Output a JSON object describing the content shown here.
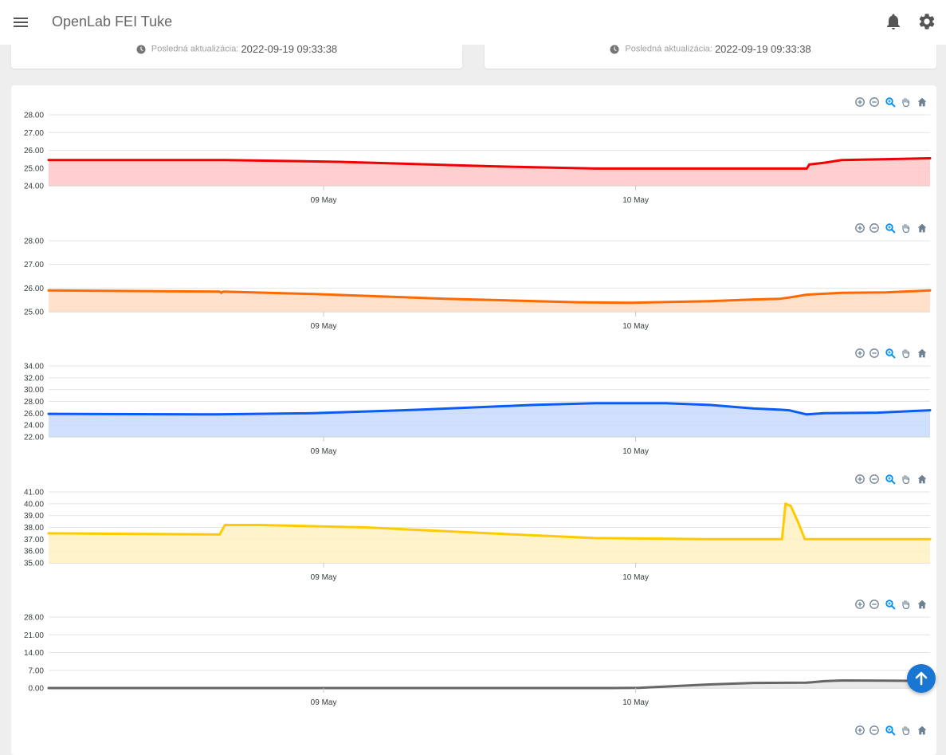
{
  "header": {
    "title": "OpenLab FEI Tuke",
    "icons": [
      "menu-icon",
      "bell-icon",
      "gear-icon"
    ]
  },
  "info_cards": [
    {
      "label": "Posledná aktualizácia:",
      "value": "2022-09-19 09:33:38"
    },
    {
      "label": "Posledná aktualizácia:",
      "value": "2022-09-19 09:33:38"
    }
  ],
  "toolbar_icons": [
    "zoom-in-icon",
    "zoom-out-icon",
    "selection-zoom-icon",
    "pan-icon",
    "reset-home-icon"
  ],
  "scroll_top_icon": "arrow-up-icon",
  "chart_data": [
    {
      "type": "area",
      "color": "#ee0000",
      "fill": "#ffc5c5",
      "ylim": [
        24,
        28
      ],
      "yticks": [
        "24.00",
        "25.00",
        "26.00",
        "27.00",
        "28.00"
      ],
      "xticks": [
        {
          "t": 0.312,
          "label": "09 May"
        },
        {
          "t": 0.666,
          "label": "10 May"
        }
      ],
      "points": [
        [
          0,
          25.45
        ],
        [
          0.2,
          25.45
        ],
        [
          0.33,
          25.35
        ],
        [
          0.5,
          25.1
        ],
        [
          0.62,
          24.97
        ],
        [
          0.86,
          24.97
        ],
        [
          0.863,
          25.2
        ],
        [
          0.88,
          25.3
        ],
        [
          0.9,
          25.45
        ],
        [
          1.0,
          25.55
        ]
      ]
    },
    {
      "type": "area",
      "color": "#ff6a00",
      "fill": "#ffdcc2",
      "ylim": [
        25,
        28
      ],
      "yticks": [
        "25.00",
        "26.00",
        "27.00",
        "28.00"
      ],
      "xticks": [
        {
          "t": 0.312,
          "label": "09 May"
        },
        {
          "t": 0.666,
          "label": "10 May"
        }
      ],
      "points": [
        [
          0,
          25.9
        ],
        [
          0.194,
          25.85
        ],
        [
          0.196,
          25.8
        ],
        [
          0.198,
          25.85
        ],
        [
          0.3,
          25.75
        ],
        [
          0.45,
          25.55
        ],
        [
          0.6,
          25.4
        ],
        [
          0.66,
          25.38
        ],
        [
          0.75,
          25.45
        ],
        [
          0.8,
          25.52
        ],
        [
          0.83,
          25.55
        ],
        [
          0.84,
          25.6
        ],
        [
          0.86,
          25.72
        ],
        [
          0.9,
          25.8
        ],
        [
          0.95,
          25.82
        ],
        [
          1.0,
          25.9
        ]
      ]
    },
    {
      "type": "area",
      "color": "#0a5cf5",
      "fill": "#c8dafc",
      "ylim": [
        22,
        34
      ],
      "yticks": [
        "22.00",
        "24.00",
        "26.00",
        "28.00",
        "30.00",
        "32.00",
        "34.00"
      ],
      "xticks": [
        {
          "t": 0.312,
          "label": "09 May"
        },
        {
          "t": 0.666,
          "label": "10 May"
        }
      ],
      "points": [
        [
          0,
          25.9
        ],
        [
          0.19,
          25.8
        ],
        [
          0.3,
          26.0
        ],
        [
          0.42,
          26.6
        ],
        [
          0.55,
          27.4
        ],
        [
          0.62,
          27.7
        ],
        [
          0.7,
          27.7
        ],
        [
          0.75,
          27.4
        ],
        [
          0.8,
          26.8
        ],
        [
          0.83,
          26.6
        ],
        [
          0.84,
          26.5
        ],
        [
          0.86,
          25.8
        ],
        [
          0.88,
          26.0
        ],
        [
          0.94,
          26.1
        ],
        [
          1.0,
          26.5
        ]
      ]
    },
    {
      "type": "area",
      "color": "#ffcb00",
      "fill": "#fff1c2",
      "ylim": [
        35,
        41
      ],
      "yticks": [
        "35.00",
        "36.00",
        "37.00",
        "38.00",
        "39.00",
        "40.00",
        "41.00"
      ],
      "xticks": [
        {
          "t": 0.312,
          "label": "09 May"
        },
        {
          "t": 0.666,
          "label": "10 May"
        }
      ],
      "points": [
        [
          0,
          37.5
        ],
        [
          0.19,
          37.4
        ],
        [
          0.194,
          37.4
        ],
        [
          0.2,
          38.2
        ],
        [
          0.24,
          38.2
        ],
        [
          0.36,
          38.0
        ],
        [
          0.5,
          37.5
        ],
        [
          0.62,
          37.1
        ],
        [
          0.75,
          37.0
        ],
        [
          0.832,
          37.0
        ],
        [
          0.836,
          40.0
        ],
        [
          0.842,
          39.8
        ],
        [
          0.85,
          38.5
        ],
        [
          0.858,
          37.0
        ],
        [
          1.0,
          37.0
        ]
      ]
    },
    {
      "type": "area",
      "color": "#666666",
      "fill": "#e6e6e6",
      "ylim": [
        0,
        28
      ],
      "yticks": [
        "0.00",
        "7.00",
        "14.00",
        "21.00",
        "28.00"
      ],
      "xticks": [
        {
          "t": 0.312,
          "label": "09 May"
        },
        {
          "t": 0.666,
          "label": "10 May"
        }
      ],
      "points": [
        [
          0,
          0.0
        ],
        [
          0.64,
          0.0
        ],
        [
          0.67,
          0.1
        ],
        [
          0.75,
          1.4
        ],
        [
          0.8,
          2.0
        ],
        [
          0.86,
          2.1
        ],
        [
          0.88,
          2.7
        ],
        [
          0.9,
          3.0
        ],
        [
          0.95,
          2.9
        ],
        [
          1.0,
          2.8
        ]
      ]
    },
    {
      "type": "area",
      "color": "#8c8c8c",
      "fill": "#eeeeee",
      "ylim": [
        0,
        1
      ],
      "yticks": [],
      "xticks": [],
      "points": []
    }
  ]
}
